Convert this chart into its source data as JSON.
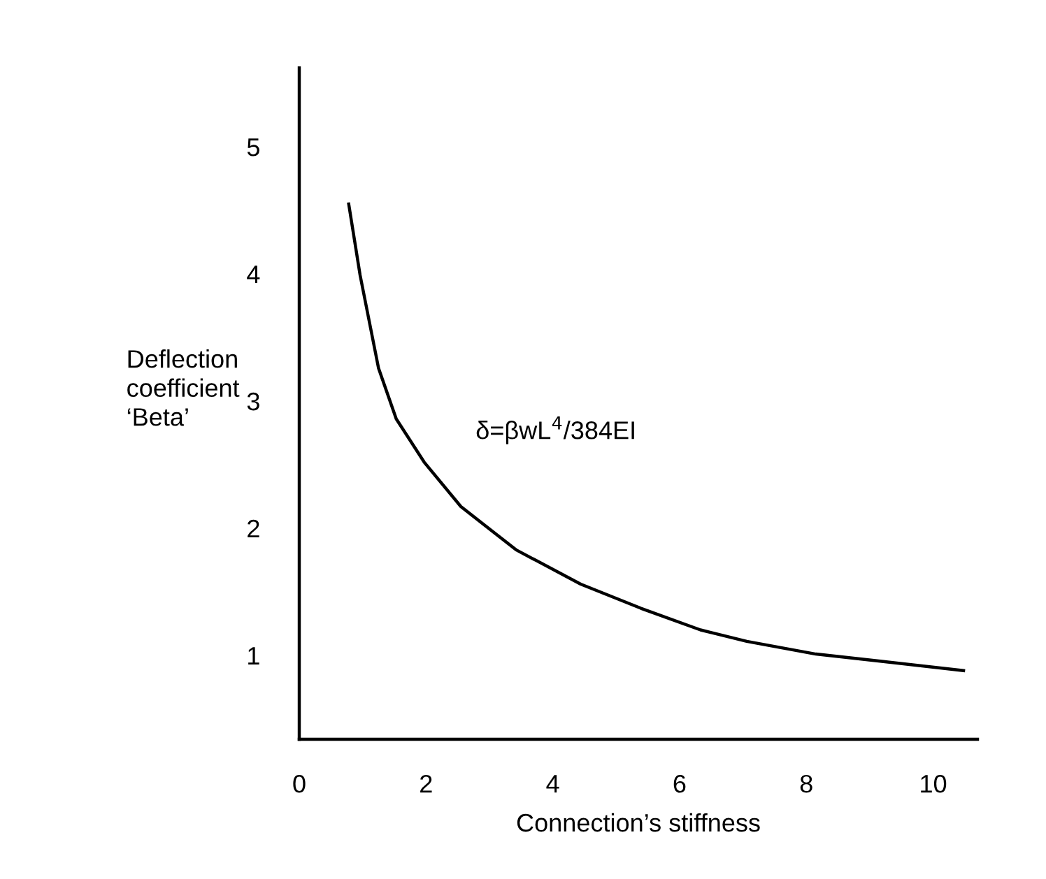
{
  "chart_data": {
    "type": "line",
    "xlabel": "Connection’s stiffness",
    "ylabel": "Deflection\ncoefficient\n‘Beta’",
    "annotations": [
      "δ=βwL$^{4}$/384EI"
    ],
    "series": [
      {
        "color": "#000000",
        "x": [
          0.78,
          0.96,
          1.25,
          1.53,
          1.97,
          2.55,
          3.42,
          4.44,
          5.39,
          6.33,
          7.06,
          8.15,
          9.24,
          10.48
        ],
        "values": [
          4.55,
          3.99,
          3.26,
          2.86,
          2.52,
          2.17,
          1.83,
          1.56,
          1.37,
          1.2,
          1.11,
          1.01,
          0.95,
          0.88
        ]
      }
    ],
    "xlim": [
      0,
      10.7
    ],
    "ylim": [
      0.34,
      5.62
    ],
    "xticks": [
      0,
      2,
      4,
      6,
      8,
      10
    ],
    "yticks": [
      1,
      2,
      3,
      4,
      5
    ],
    "grid": false,
    "legend": false,
    "marker": "none",
    "line_style": "solid"
  }
}
